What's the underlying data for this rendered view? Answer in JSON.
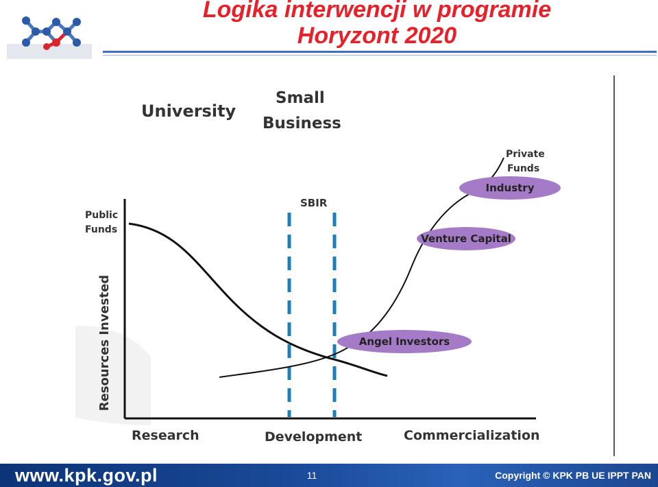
{
  "header": {
    "title_line1": "Logika interwencji w programie",
    "title_line2": "Horyzont 2020"
  },
  "diagram": {
    "label_university": "University",
    "label_small_business_1": "Small",
    "label_small_business_2": "Business",
    "label_sbir": "SBIR",
    "label_public_funds_1": "Public",
    "label_public_funds_2": "Funds",
    "label_private_funds_1": "Private",
    "label_private_funds_2": "Funds",
    "y_axis_label": "Resources Invested",
    "stage_research": "Research",
    "stage_development": "Development",
    "stage_commercialization": "Commercialization",
    "bubble_industry": "Industry",
    "bubble_venture_capital": "Venture Capital",
    "bubble_angel_investors": "Angel Investors",
    "colors": {
      "bubble_fill": "#a57bc7",
      "dashed_line": "#1f7fb4",
      "curve": "#111111"
    }
  },
  "footer": {
    "url": "www.kpk.gov.pl",
    "page_number": "11",
    "copyright": "Copyright ©  KPK PB UE IPPT PAN"
  }
}
